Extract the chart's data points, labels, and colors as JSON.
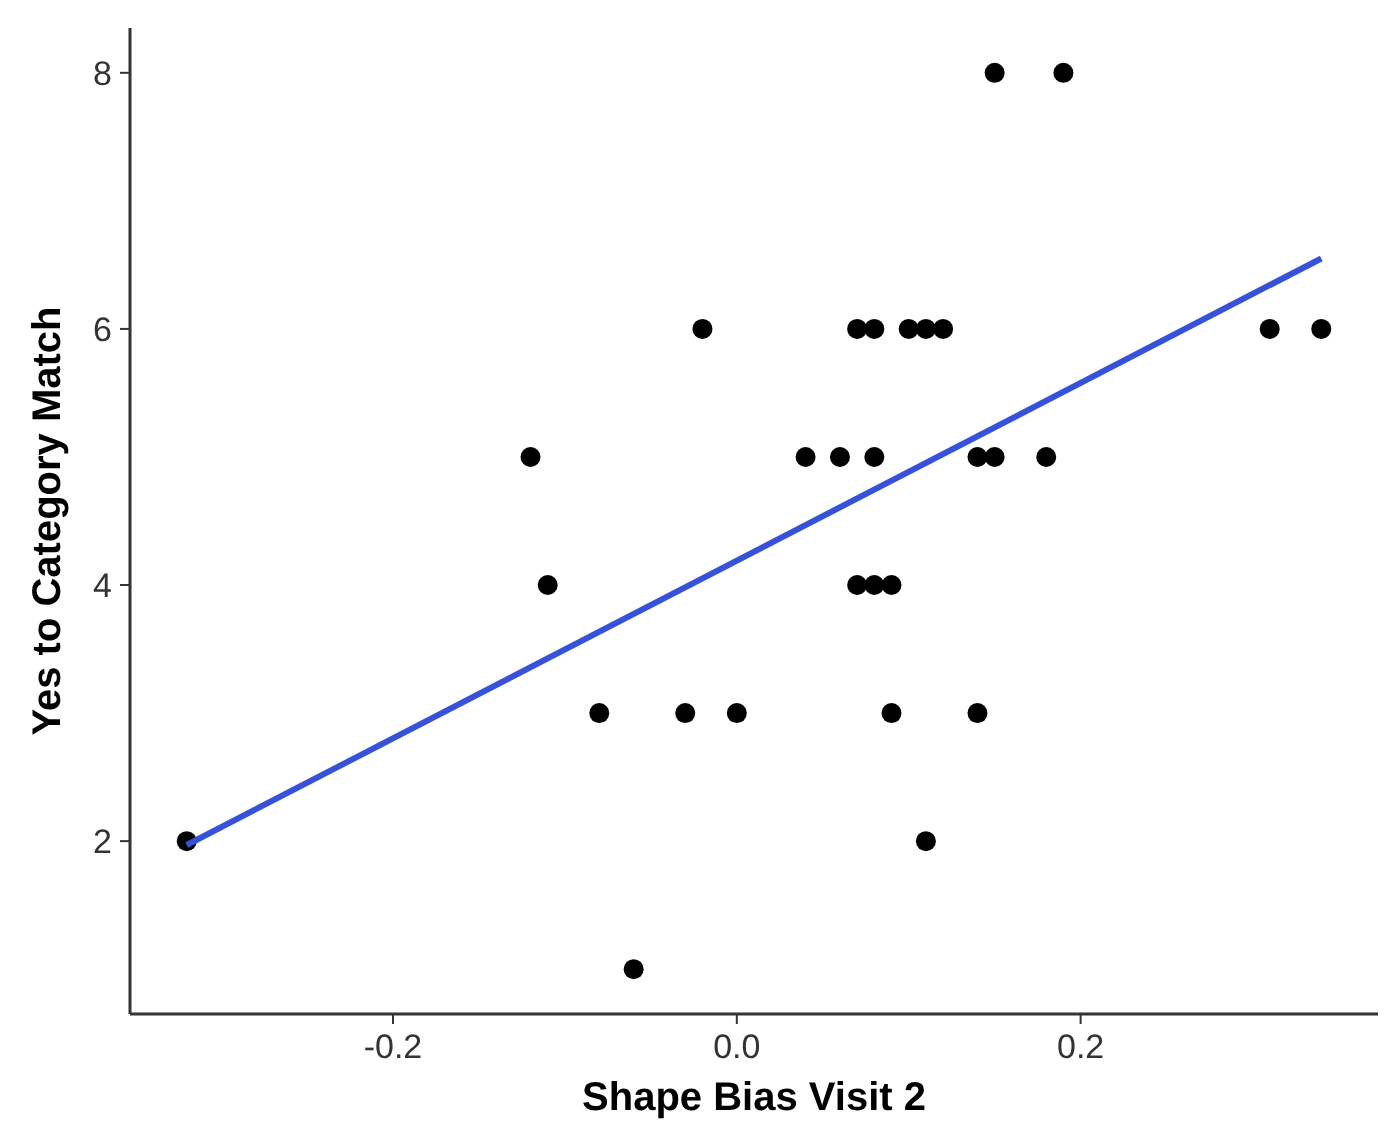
{
  "chart_data": {
    "type": "scatter",
    "xlabel": "Shape Bias Visit 2",
    "ylabel": "Yes to Category Match",
    "xlim": [
      -0.353,
      0.373
    ],
    "xticks": [
      {
        "value": -0.2,
        "label": "-0.2"
      },
      {
        "value": 0,
        "label": "0.0"
      },
      {
        "value": 0.2,
        "label": "0.2"
      }
    ],
    "ylim": [
      0.65,
      8.35
    ],
    "yticks": [
      2,
      4,
      6,
      8
    ],
    "grid": false,
    "marker": "circle",
    "series": [
      {
        "color": "#000000",
        "x": [
          -0.32,
          -0.12,
          -0.11,
          -0.08,
          -0.06,
          -0.03,
          -0.02,
          0.0,
          0.04,
          0.06,
          0.07,
          0.08,
          0.07,
          0.08,
          0.09,
          0.08,
          0.09,
          0.1,
          0.11,
          0.12,
          0.11,
          0.14,
          0.15,
          0.14,
          0.15,
          0.18,
          0.19,
          0.31,
          0.34
        ],
        "values": [
          2,
          5,
          4,
          3,
          1,
          3,
          6,
          3,
          5,
          5,
          6,
          6,
          4,
          4,
          4,
          5,
          3,
          6,
          6,
          6,
          2,
          5,
          5,
          3,
          8,
          5,
          8,
          6,
          6
        ]
      },
      {
        "type": "line",
        "color": "#3652d9",
        "x": [
          -0.32,
          0.34
        ],
        "values": [
          1.97,
          6.55
        ],
        "marker": "none"
      }
    ]
  }
}
